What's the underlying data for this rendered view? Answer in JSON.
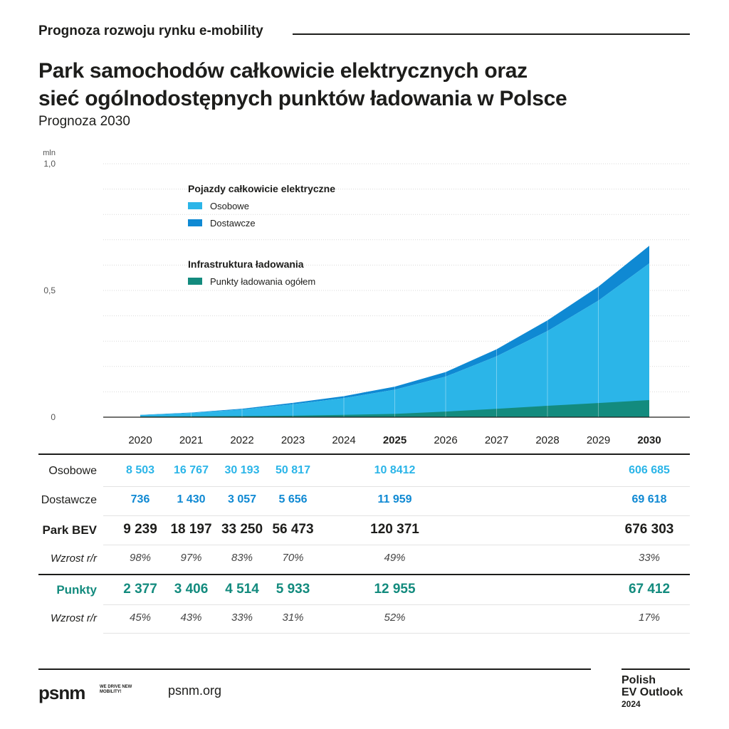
{
  "header": {
    "section": "Prognoza rozwoju rynku e-mobility",
    "title_line1": "Park samochodów całkowicie elektrycznych oraz",
    "title_line2": "sieć ogólnodostępnych punktów ładowania w Polsce",
    "subtitle": "Prognoza 2030"
  },
  "chart_data": {
    "type": "area",
    "stacked": true,
    "unit_label": "mln",
    "x": [
      "2020",
      "2021",
      "2022",
      "2023",
      "2024",
      "2025",
      "2026",
      "2027",
      "2028",
      "2029",
      "2030"
    ],
    "bold_x": [
      "2025",
      "2030"
    ],
    "ylim": [
      0,
      1.0
    ],
    "y_ticks": [
      "0",
      "0,5",
      "1,0"
    ],
    "y_tick_values": [
      0,
      0.5,
      1.0
    ],
    "grid": true,
    "series": [
      {
        "name": "Osobowe",
        "color": "#2bb5e8",
        "values": [
          0.0085,
          0.0168,
          0.0302,
          0.0508,
          0.075,
          0.1084,
          0.16,
          0.24,
          0.34,
          0.46,
          0.6067
        ]
      },
      {
        "name": "Dostawcze",
        "color": "#0f89d3",
        "values": [
          0.0007,
          0.0014,
          0.0031,
          0.0057,
          0.008,
          0.012,
          0.018,
          0.028,
          0.042,
          0.055,
          0.0696
        ]
      },
      {
        "name": "Punkty ładowania ogółem",
        "color": "#138b7e",
        "values": [
          0.0024,
          0.0034,
          0.0045,
          0.0059,
          0.009,
          0.013,
          0.022,
          0.033,
          0.045,
          0.056,
          0.0674
        ]
      }
    ],
    "legend": {
      "group1_title": "Pojazdy całkowicie elektryczne",
      "group2_title": "Infrastruktura ładowania"
    }
  },
  "table": {
    "columns": [
      "2020",
      "2021",
      "2022",
      "2023",
      "2024",
      "2025",
      "2026",
      "2027",
      "2028",
      "2029",
      "2030"
    ],
    "rows": [
      {
        "label": "Osobowe",
        "style": "light",
        "color": "#2bb5e8",
        "values": [
          "8 503",
          "16 767",
          "30 193",
          "50 817",
          "",
          "10 8412",
          "",
          "",
          "",
          "",
          "606 685"
        ]
      },
      {
        "label": "Dostawcze",
        "style": "medium",
        "color": "#0f89d3",
        "values": [
          "736",
          "1 430",
          "3 057",
          "5 656",
          "",
          "11 959",
          "",
          "",
          "",
          "",
          "69 618"
        ]
      },
      {
        "label": "Park BEV",
        "style": "boldbig",
        "color": "#1d1d1b",
        "values": [
          "9 239",
          "18 197",
          "33 250",
          "56 473",
          "",
          "120 371",
          "",
          "",
          "",
          "",
          "676 303"
        ]
      },
      {
        "label": "Wzrost r/r",
        "style": "italic",
        "color": "#1d1d1b",
        "values": [
          "98%",
          "97%",
          "83%",
          "70%",
          "",
          "49%",
          "",
          "",
          "",
          "",
          "33%"
        ]
      },
      {
        "label": "Punkty",
        "style": "boldbig",
        "color": "#138b7e",
        "values": [
          "2 377",
          "3 406",
          "4 514",
          "5 933",
          "",
          "12 955",
          "",
          "",
          "",
          "",
          "67 412"
        ]
      },
      {
        "label": "Wzrost r/r",
        "style": "italic",
        "color": "#1d1d1b",
        "values": [
          "45%",
          "43%",
          "33%",
          "31%",
          "",
          "52%",
          "",
          "",
          "",
          "",
          "17%"
        ]
      }
    ]
  },
  "footer": {
    "logo": "psnm",
    "logo_tagline": "WE DRIVE NEW MOBILITY!",
    "site": "psnm.org",
    "brand_line1": "Polish",
    "brand_line2": "EV Outlook",
    "brand_year": "2024"
  }
}
